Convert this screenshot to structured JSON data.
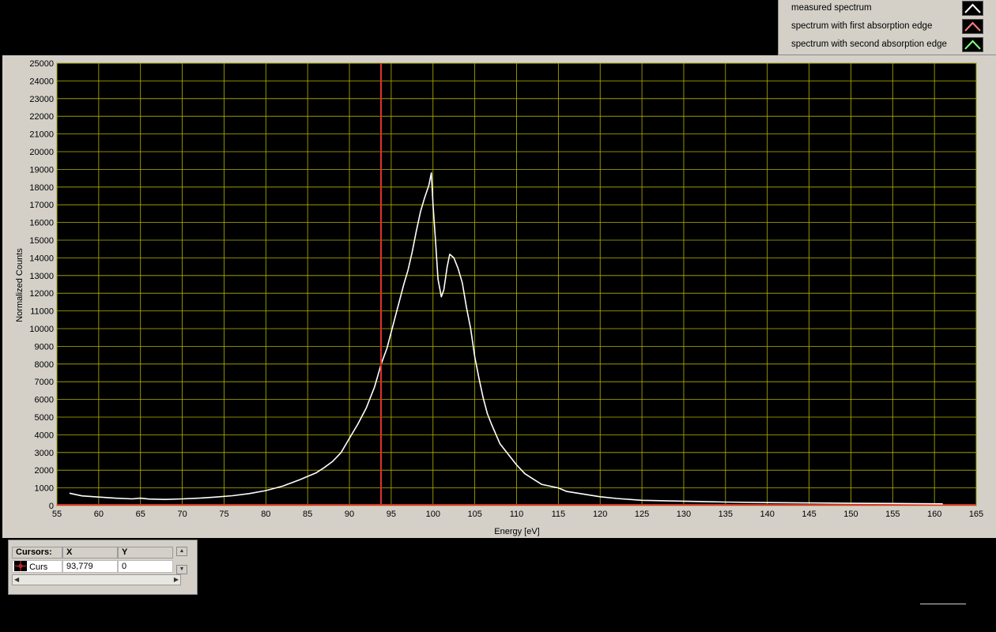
{
  "legend": {
    "items": [
      {
        "label": "measured spectrum",
        "color": "#ffffff"
      },
      {
        "label": "spectrum with first absorption edge",
        "color": "#ff7f7f"
      },
      {
        "label": "spectrum with second absorption edge",
        "color": "#7fff7f"
      }
    ]
  },
  "cursor_panel": {
    "title": "Cursors:",
    "col_x": "X",
    "col_y": "Y",
    "name": "Curs",
    "x_value": "93,779",
    "y_value": "0",
    "cursor_color": "#e03030"
  },
  "chart_data": {
    "type": "line",
    "xlabel": "Energy [eV]",
    "ylabel": "Normalized Counts",
    "xlim": [
      55,
      165
    ],
    "ylim": [
      0,
      25000
    ],
    "x_ticks": [
      55,
      60,
      65,
      70,
      75,
      80,
      85,
      90,
      95,
      100,
      105,
      110,
      115,
      120,
      125,
      130,
      135,
      140,
      145,
      150,
      155,
      160,
      165
    ],
    "y_ticks": [
      0,
      1000,
      2000,
      3000,
      4000,
      5000,
      6000,
      7000,
      8000,
      9000,
      10000,
      11000,
      12000,
      13000,
      14000,
      15000,
      16000,
      17000,
      18000,
      19000,
      20000,
      21000,
      22000,
      23000,
      24000,
      25000
    ],
    "grid": true,
    "background_color": "#000000",
    "grid_color": "#b4b400",
    "cursor_x": 93.779,
    "baseline_color": "#e03030",
    "series": [
      {
        "name": "measured spectrum",
        "color": "#ffffff",
        "x": [
          56.5,
          58,
          60,
          62,
          64,
          65,
          66,
          68,
          70,
          72,
          74,
          76,
          78,
          80,
          82,
          84,
          85,
          86,
          87,
          88,
          89,
          90,
          91,
          92,
          93,
          93.8,
          94.5,
          95,
          95.5,
          96,
          96.5,
          97,
          97.5,
          98,
          98.5,
          99,
          99.5,
          99.8,
          100,
          100.3,
          100.6,
          101,
          101.3,
          101.7,
          102,
          102.5,
          103,
          103.5,
          104,
          104.5,
          105,
          105.5,
          106,
          106.5,
          107,
          108,
          109,
          110,
          111,
          112,
          113,
          114,
          115,
          116,
          118,
          120,
          122,
          125,
          130,
          135,
          140,
          145,
          150,
          155,
          161
        ],
        "y": [
          700,
          550,
          480,
          420,
          380,
          420,
          370,
          350,
          380,
          420,
          480,
          560,
          680,
          850,
          1100,
          1450,
          1650,
          1850,
          2150,
          2500,
          3000,
          3800,
          4600,
          5500,
          6700,
          8000,
          8900,
          9800,
          10700,
          11600,
          12500,
          13300,
          14300,
          15500,
          16600,
          17400,
          18100,
          18800,
          17000,
          15000,
          12800,
          11800,
          12200,
          13500,
          14200,
          14000,
          13400,
          12600,
          11200,
          10000,
          8400,
          7200,
          6100,
          5200,
          4600,
          3500,
          2900,
          2300,
          1800,
          1500,
          1200,
          1100,
          1000,
          800,
          650,
          500,
          400,
          300,
          250,
          200,
          170,
          150,
          130,
          120,
          100
        ]
      }
    ]
  }
}
